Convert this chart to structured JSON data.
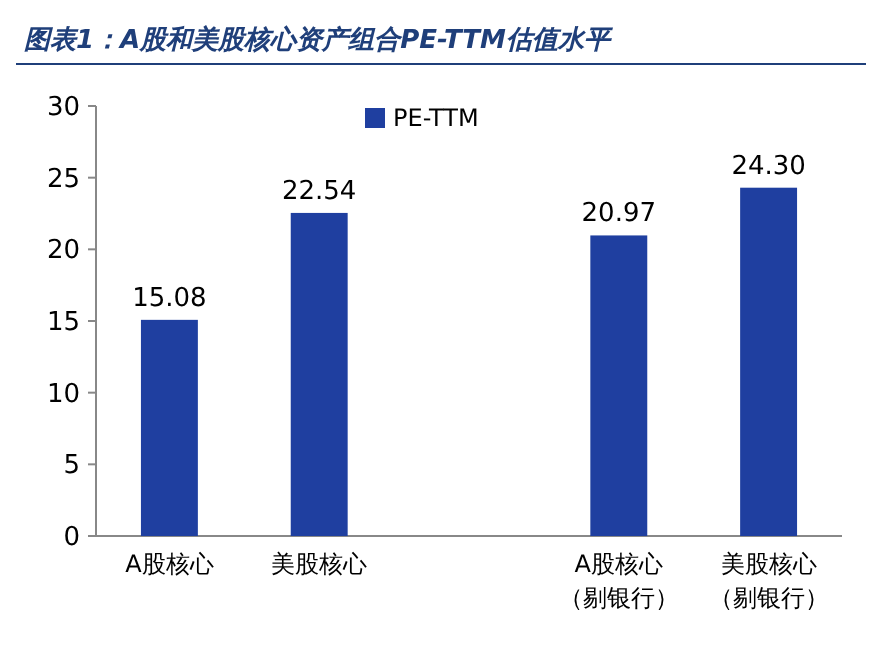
{
  "chart_data": {
    "type": "bar",
    "title": "图表1：A股和美股核心资产组合PE-TTM估值水平",
    "categories": [
      "A股核心",
      "美股核心",
      null,
      "A股核心（剔银行）",
      "美股核心（剔银行）"
    ],
    "series": [
      {
        "name": "PE-TTM",
        "color": "#1f3fa0",
        "values": [
          15.08,
          22.54,
          null,
          20.97,
          24.3
        ]
      }
    ],
    "value_labels": [
      "15.08",
      "22.54",
      null,
      "20.97",
      "24.30"
    ],
    "ylim": [
      0,
      30
    ],
    "yticks": [
      0,
      5,
      10,
      15,
      20,
      25,
      30
    ],
    "grid": false,
    "legend": "top"
  }
}
